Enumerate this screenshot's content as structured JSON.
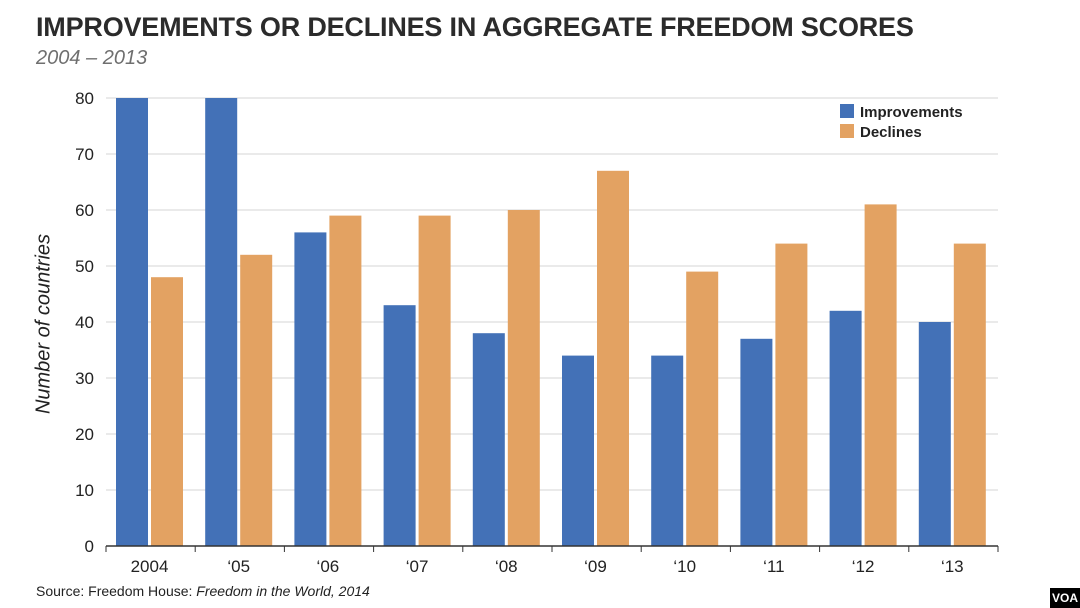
{
  "chart_data": {
    "type": "bar",
    "title": "IMPROVEMENTS OR DECLINES IN AGGREGATE FREEDOM SCORES",
    "subtitle": "2004 – 2013",
    "xlabel": "",
    "ylabel": "Number of countries",
    "categories": [
      "2004",
      "‘05",
      "‘06",
      "‘07",
      "‘08",
      "‘09",
      "‘10",
      "‘11",
      "‘12",
      "‘13"
    ],
    "series": [
      {
        "name": "Improvements",
        "color": "#4371b7",
        "values": [
          80,
          80,
          56,
          43,
          38,
          34,
          34,
          37,
          42,
          40
        ]
      },
      {
        "name": "Declines",
        "color": "#e3a262",
        "values": [
          48,
          52,
          59,
          59,
          60,
          67,
          49,
          54,
          61,
          54
        ]
      }
    ],
    "ylim": [
      0,
      80
    ],
    "yticks": [
      0,
      10,
      20,
      30,
      40,
      50,
      60,
      70,
      80
    ],
    "grid": true,
    "legend": "top-right"
  },
  "source": {
    "prefix": "Source: Freedom House: ",
    "publication": "Freedom in the World, 2014"
  },
  "logo": "VOA"
}
